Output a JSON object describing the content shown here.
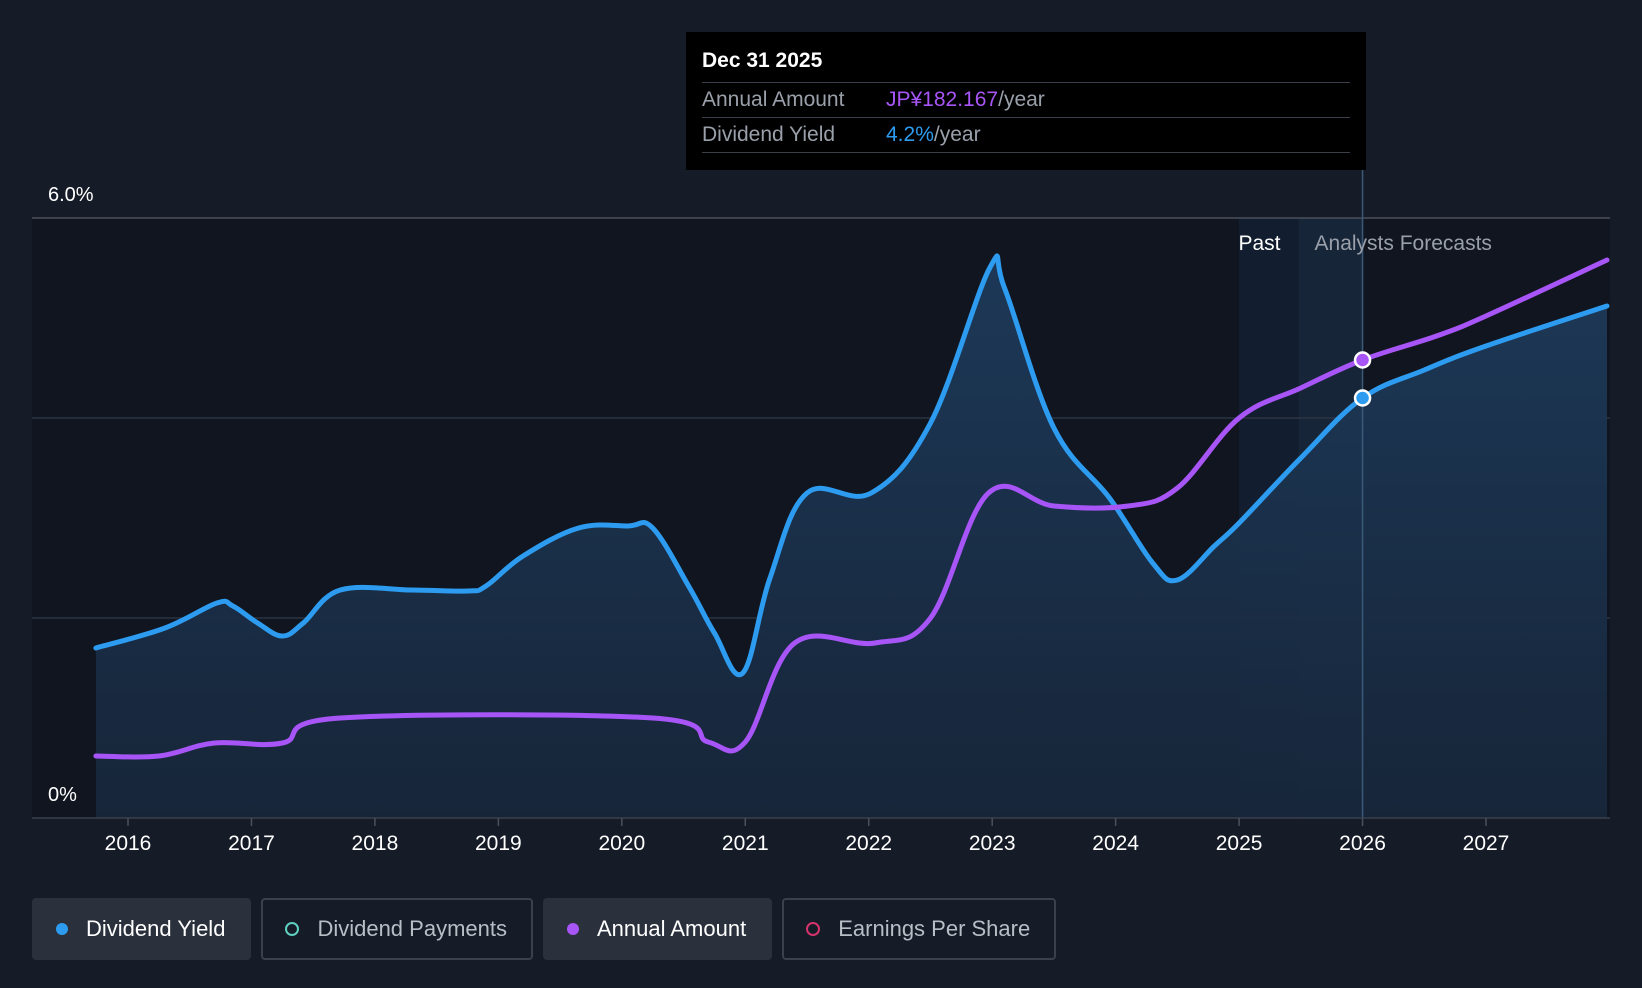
{
  "tooltip": {
    "date": "Dec 31 2025",
    "rows": [
      {
        "key": "Annual Amount",
        "value": "JP¥182.167",
        "unit": "/year",
        "color": "#a855f7"
      },
      {
        "key": "Dividend Yield",
        "value": "4.2%",
        "unit": "/year",
        "color": "#2d9cf0"
      }
    ]
  },
  "regions": {
    "past_label": "Past",
    "forecast_label": "Analysts Forecasts"
  },
  "legend": [
    {
      "label": "Dividend Yield",
      "color": "#2d9cf0",
      "active": true,
      "filled": true,
      "icon": "dividend-yield-dot-icon"
    },
    {
      "label": "Dividend Payments",
      "color": "#5ed0c0",
      "active": false,
      "filled": false,
      "icon": "dividend-payments-ring-icon"
    },
    {
      "label": "Annual Amount",
      "color": "#a855f7",
      "active": true,
      "filled": true,
      "icon": "annual-amount-dot-icon"
    },
    {
      "label": "Earnings Per Share",
      "color": "#d6336c",
      "active": false,
      "filled": false,
      "icon": "earnings-per-share-ring-icon"
    }
  ],
  "chart_data": {
    "type": "line",
    "title": "",
    "xlabel": "",
    "ylabel": "",
    "y_tick_labels": [
      "6.0%",
      "0%"
    ],
    "ylim": [
      0,
      6.0
    ],
    "xlim": [
      2015.25,
      2027.98
    ],
    "x_ticks": [
      2016,
      2017,
      2018,
      2019,
      2020,
      2021,
      2022,
      2023,
      2024,
      2025,
      2026,
      2027
    ],
    "grid": true,
    "legend": "bottom",
    "past_forecast_boundary": 2026.0,
    "series": [
      {
        "name": "Dividend Yield",
        "color": "#2d9cf0",
        "unit": "%",
        "area": true,
        "points": [
          [
            2015.74,
            1.7
          ],
          [
            2016.3,
            1.9
          ],
          [
            2016.72,
            2.15
          ],
          [
            2016.85,
            2.12
          ],
          [
            2017.05,
            1.95
          ],
          [
            2017.25,
            1.82
          ],
          [
            2017.42,
            1.95
          ],
          [
            2017.72,
            2.28
          ],
          [
            2018.3,
            2.28
          ],
          [
            2018.75,
            2.27
          ],
          [
            2018.9,
            2.32
          ],
          [
            2019.2,
            2.62
          ],
          [
            2019.65,
            2.9
          ],
          [
            2020.05,
            2.92
          ],
          [
            2020.25,
            2.9
          ],
          [
            2020.55,
            2.3
          ],
          [
            2020.75,
            1.85
          ],
          [
            2020.98,
            1.45
          ],
          [
            2021.2,
            2.4
          ],
          [
            2021.5,
            3.25
          ],
          [
            2022.02,
            3.25
          ],
          [
            2022.5,
            3.95
          ],
          [
            2022.98,
            5.5
          ],
          [
            2023.1,
            5.3
          ],
          [
            2023.5,
            3.9
          ],
          [
            2023.95,
            3.2
          ],
          [
            2024.3,
            2.55
          ],
          [
            2024.5,
            2.38
          ],
          [
            2024.8,
            2.72
          ],
          [
            2025.0,
            2.95
          ],
          [
            2025.5,
            3.6
          ],
          [
            2026.0,
            4.2
          ],
          [
            2026.5,
            4.48
          ],
          [
            2027.0,
            4.72
          ],
          [
            2027.98,
            5.12
          ]
        ]
      },
      {
        "name": "Annual Amount",
        "color": "#a855f7",
        "unit": "%",
        "area": false,
        "points": [
          [
            2015.74,
            0.62
          ],
          [
            2016.25,
            0.62
          ],
          [
            2016.7,
            0.75
          ],
          [
            2017.25,
            0.75
          ],
          [
            2017.72,
            1.0
          ],
          [
            2020.25,
            1.0
          ],
          [
            2020.7,
            0.76
          ],
          [
            2021.0,
            0.76
          ],
          [
            2021.4,
            1.75
          ],
          [
            2022.05,
            1.75
          ],
          [
            2022.5,
            2.0
          ],
          [
            2022.97,
            3.25
          ],
          [
            2023.5,
            3.12
          ],
          [
            2024.1,
            3.12
          ],
          [
            2024.5,
            3.3
          ],
          [
            2025.0,
            4.0
          ],
          [
            2025.5,
            4.3
          ],
          [
            2026.0,
            4.58
          ],
          [
            2026.6,
            4.82
          ],
          [
            2027.0,
            5.02
          ],
          [
            2027.98,
            5.58
          ]
        ]
      }
    ],
    "highlight_x": 2026.0
  }
}
